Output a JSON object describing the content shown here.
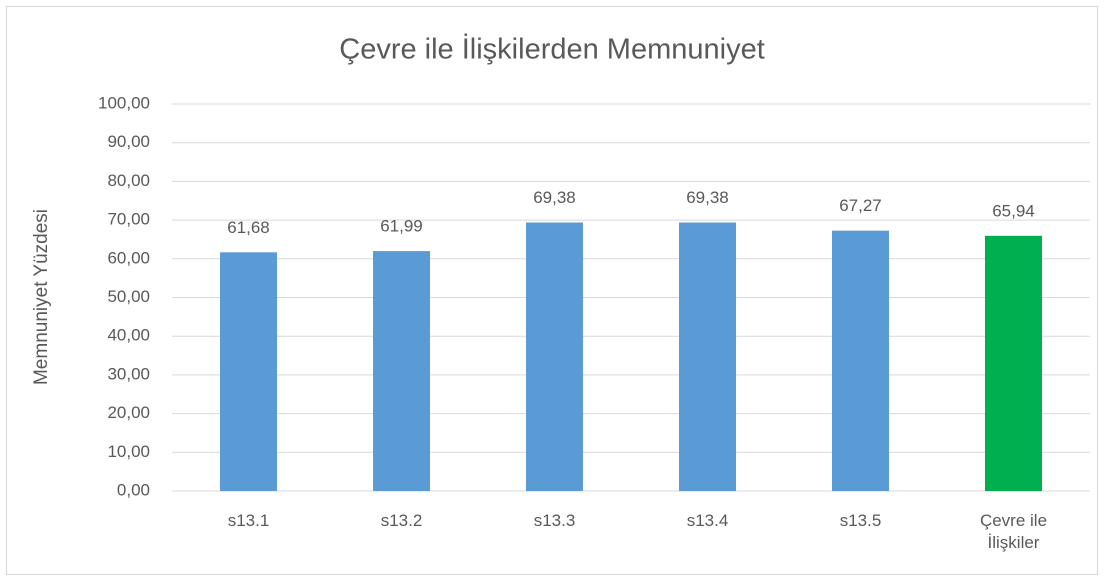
{
  "chart_data": {
    "type": "bar",
    "title": "Çevre ile İlişkilerden Memnuniyet",
    "y_label": "Memnuniyet Yüzdesi",
    "categories": [
      "s13.1",
      "s13.2",
      "s13.3",
      "s13.4",
      "s13.5",
      "Çevre ile İlişkiler"
    ],
    "values": [
      61.68,
      61.99,
      69.38,
      69.38,
      67.27,
      65.94
    ],
    "value_labels": [
      "61,68",
      "61,99",
      "69,38",
      "69,38",
      "67,27",
      "65,94"
    ],
    "colors": [
      "#5b9bd5",
      "#5b9bd5",
      "#5b9bd5",
      "#5b9bd5",
      "#5b9bd5",
      "#00b050"
    ],
    "ylim": [
      0,
      100
    ],
    "yticks": [
      {
        "value": 0,
        "label": "0,00"
      },
      {
        "value": 10,
        "label": "10,00"
      },
      {
        "value": 20,
        "label": "20,00"
      },
      {
        "value": 30,
        "label": "30,00"
      },
      {
        "value": 40,
        "label": "40,00"
      },
      {
        "value": 50,
        "label": "50,00"
      },
      {
        "value": 60,
        "label": "60,00"
      },
      {
        "value": 70,
        "label": "70,00"
      },
      {
        "value": 80,
        "label": "80,00"
      },
      {
        "value": 90,
        "label": "90,00"
      },
      {
        "value": 100,
        "label": "100,00"
      }
    ],
    "grid": true
  }
}
